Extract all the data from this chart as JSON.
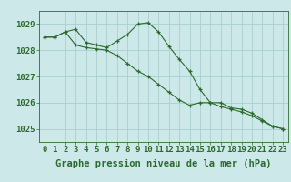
{
  "title": "Graphe pression niveau de la mer (hPa)",
  "xlabel_hours": [
    0,
    1,
    2,
    3,
    4,
    5,
    6,
    7,
    8,
    9,
    10,
    11,
    12,
    13,
    14,
    15,
    16,
    17,
    18,
    19,
    20,
    21,
    22,
    23
  ],
  "line1": [
    1028.5,
    1028.5,
    1028.7,
    1028.8,
    1028.3,
    1028.2,
    1028.1,
    1028.35,
    1028.6,
    1029.0,
    1029.05,
    1028.7,
    1028.15,
    1027.65,
    1027.2,
    1026.5,
    1026.0,
    1026.0,
    1025.8,
    1025.75,
    1025.6,
    1025.35,
    1025.1,
    1025.0
  ],
  "line2": [
    1028.5,
    1028.5,
    1028.7,
    1028.2,
    1028.1,
    1028.05,
    1028.0,
    1027.8,
    1027.5,
    1027.2,
    1027.0,
    1026.7,
    1026.4,
    1026.1,
    1025.9,
    1026.0,
    1026.0,
    1025.85,
    1025.75,
    1025.65,
    1025.5,
    1025.3,
    1025.1,
    1025.0
  ],
  "ylim": [
    1024.5,
    1029.5
  ],
  "yticks": [
    1025,
    1026,
    1027,
    1028,
    1029
  ],
  "line_color": "#2d6a2d",
  "bg_color": "#cce8e8",
  "grid_color": "#aad0d0",
  "title_color": "#2d6a2d",
  "title_fontsize": 7.5,
  "tick_fontsize": 6.5
}
